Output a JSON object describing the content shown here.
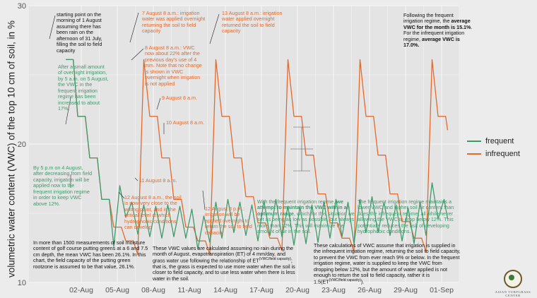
{
  "chart_data": {
    "type": "line",
    "ylabel": "volumetric water content (VWC) of the top 10 cm of soil, in %",
    "xlabel": "",
    "ylim": [
      10,
      30
    ],
    "yticks": [
      10,
      20,
      30
    ],
    "xticks": [
      "02-Aug",
      "05-Aug",
      "08-Aug",
      "11-Aug",
      "14-Aug",
      "17-Aug",
      "20-Aug",
      "23-Aug",
      "26-Aug",
      "29-Aug",
      "01-Sep"
    ],
    "x_start": "2014-07-31 17:00",
    "x_end": "2014-09-01 12:00",
    "grid": true,
    "legend_position": "right",
    "series": [
      {
        "name": "frequent",
        "color": "#3f9a6b",
        "points": [
          [
            "07-31 17:00",
            26.1
          ],
          [
            "08-01 08:00",
            26.1
          ],
          [
            "08-01 17:00",
            22.0
          ],
          [
            "08-02 08:00",
            22.0
          ],
          [
            "08-02 17:00",
            19.0
          ],
          [
            "08-03 08:00",
            19.0
          ],
          [
            "08-03 17:00",
            16.0
          ],
          [
            "08-04 08:00",
            16.0
          ],
          [
            "08-04 17:00",
            12.6
          ],
          [
            "08-05 05:00",
            17.0
          ],
          [
            "08-05 17:00",
            14.7
          ],
          [
            "08-06 05:00",
            15.8
          ],
          [
            "08-06 17:00",
            13.5
          ],
          [
            "08-07 05:00",
            15.6
          ],
          [
            "08-07 17:00",
            13.3
          ],
          [
            "08-08 05:00",
            15.5
          ],
          [
            "08-08 17:00",
            13.2
          ],
          [
            "08-09 05:00",
            15.6
          ],
          [
            "08-09 17:00",
            13.3
          ],
          [
            "08-10 05:00",
            15.5
          ],
          [
            "08-10 17:00",
            13.2
          ],
          [
            "08-11 05:00",
            15.3
          ],
          [
            "08-11 17:00",
            12.4
          ],
          [
            "08-12 05:00",
            14.8
          ],
          [
            "08-12 17:00",
            12.9
          ],
          [
            "08-13 05:00",
            15.8
          ],
          [
            "08-13 17:00",
            13.2
          ],
          [
            "08-14 05:00",
            16.0
          ],
          [
            "08-14 17:00",
            13.6
          ],
          [
            "08-15 05:00",
            15.8
          ],
          [
            "08-15 17:00",
            13.4
          ],
          [
            "08-16 05:00",
            15.6
          ],
          [
            "08-16 17:00",
            13.0
          ],
          [
            "08-17 05:00",
            15.9
          ],
          [
            "08-17 17:00",
            13.4
          ],
          [
            "08-18 05:00",
            16.0
          ],
          [
            "08-18 17:00",
            13.3
          ],
          [
            "08-19 05:00",
            15.5
          ],
          [
            "08-19 17:00",
            12.7
          ],
          [
            "08-20 05:00",
            15.5
          ],
          [
            "08-20 17:00",
            12.8
          ],
          [
            "08-21 05:00",
            15.6
          ],
          [
            "08-21 17:00",
            12.9
          ],
          [
            "08-22 05:00",
            15.8
          ],
          [
            "08-22 17:00",
            13.2
          ],
          [
            "08-23 05:00",
            16.0
          ],
          [
            "08-23 17:00",
            13.3
          ],
          [
            "08-24 05:00",
            15.8
          ],
          [
            "08-24 17:00",
            12.8
          ],
          [
            "08-25 05:00",
            16.0
          ],
          [
            "08-25 17:00",
            13.6
          ],
          [
            "08-26 05:00",
            16.2
          ],
          [
            "08-26 17:00",
            13.6
          ],
          [
            "08-27 05:00",
            15.8
          ],
          [
            "08-27 17:00",
            13.4
          ],
          [
            "08-28 05:00",
            15.6
          ],
          [
            "08-28 17:00",
            13.0
          ],
          [
            "08-29 05:00",
            15.4
          ],
          [
            "08-29 17:00",
            12.8
          ],
          [
            "08-30 05:00",
            15.8
          ],
          [
            "08-30 17:00",
            13.4
          ],
          [
            "08-31 05:00",
            17.2
          ],
          [
            "08-31 17:00",
            14.6
          ],
          [
            "09-01 05:00",
            16.0
          ],
          [
            "09-01 12:00",
            14.6
          ]
        ]
      },
      {
        "name": "infrequent",
        "color": "#e36a2c",
        "points": [
          [
            "07-31 17:00",
            26.1
          ],
          [
            "08-01 08:00",
            26.1
          ],
          [
            "08-01 17:00",
            22.0
          ],
          [
            "08-02 08:00",
            22.0
          ],
          [
            "08-02 17:00",
            19.0
          ],
          [
            "08-03 08:00",
            19.0
          ],
          [
            "08-03 17:00",
            16.0
          ],
          [
            "08-04 08:00",
            16.0
          ],
          [
            "08-04 17:00",
            14.0
          ],
          [
            "08-05 08:00",
            14.0
          ],
          [
            "08-05 17:00",
            13.0
          ],
          [
            "08-06 08:00",
            13.0
          ],
          [
            "08-06 17:00",
            12.0
          ],
          [
            "08-07 05:00",
            26.1
          ],
          [
            "08-07 17:00",
            22.0
          ],
          [
            "08-08 08:00",
            22.0
          ],
          [
            "08-08 17:00",
            19.0
          ],
          [
            "08-09 08:00",
            19.0
          ],
          [
            "08-09 17:00",
            16.0
          ],
          [
            "08-10 08:00",
            16.0
          ],
          [
            "08-10 17:00",
            14.0
          ],
          [
            "08-11 08:00",
            14.0
          ],
          [
            "08-11 17:00",
            13.0
          ],
          [
            "08-12 08:00",
            13.0
          ],
          [
            "08-12 17:00",
            12.0
          ],
          [
            "08-13 05:00",
            26.1
          ],
          [
            "08-13 17:00",
            22.0
          ],
          [
            "08-14 08:00",
            22.0
          ],
          [
            "08-14 17:00",
            19.0
          ],
          [
            "08-15 08:00",
            19.0
          ],
          [
            "08-15 17:00",
            16.2
          ],
          [
            "08-16 08:00",
            16.2
          ],
          [
            "08-16 17:00",
            14.3
          ],
          [
            "08-17 08:00",
            14.3
          ],
          [
            "08-17 17:00",
            13.2
          ],
          [
            "08-18 08:00",
            13.2
          ],
          [
            "08-18 17:00",
            12.3
          ],
          [
            "08-19 05:00",
            26.1
          ],
          [
            "08-19 17:00",
            22.0
          ],
          [
            "08-20 08:00",
            22.0
          ],
          [
            "08-20 17:00",
            19.2
          ],
          [
            "08-21 08:00",
            19.2
          ],
          [
            "08-21 17:00",
            16.4
          ],
          [
            "08-22 08:00",
            16.4
          ],
          [
            "08-22 17:00",
            14.3
          ],
          [
            "08-23 08:00",
            14.3
          ],
          [
            "08-23 17:00",
            13.2
          ],
          [
            "08-24 08:00",
            13.2
          ],
          [
            "08-24 17:00",
            12.2
          ],
          [
            "08-25 05:00",
            26.1
          ],
          [
            "08-25 17:00",
            22.0
          ],
          [
            "08-26 08:00",
            22.0
          ],
          [
            "08-26 17:00",
            19.2
          ],
          [
            "08-27 08:00",
            19.2
          ],
          [
            "08-27 17:00",
            16.4
          ],
          [
            "08-28 08:00",
            16.4
          ],
          [
            "08-28 17:00",
            14.4
          ],
          [
            "08-29 08:00",
            14.4
          ],
          [
            "08-29 17:00",
            13.2
          ],
          [
            "08-30 08:00",
            13.2
          ],
          [
            "08-30 17:00",
            12.2
          ],
          [
            "08-31 05:00",
            26.1
          ],
          [
            "08-31 17:00",
            22.0
          ],
          [
            "09-01 08:00",
            22.0
          ],
          [
            "09-01 12:00",
            21.0
          ]
        ]
      }
    ],
    "annotations": {
      "a1": "starting point on the morning of 1 August assuming there has been rain on the afternoon of 31 July, filling the soil to field capacity",
      "a2": "After a small amount of overnight irrigation, by 5 a.m. on 5 August, the VWC in the frequent irrigation regime has been increased to about 17%.",
      "a3": "By 5 p.m on 4 August, after decreasing from field capacity, irrigation will be applied now to the frequent irrigation regime in order to keep VWC above 12%.",
      "a4": "7 August 8 a.m.: irrigation water was applied overnight returning the soil to field capacity",
      "a5": "8 August 8 a.m.: VWC now about 22% after the previous day's use of 4 mm. Note that no change is shown in VWC overnight when irrigation is not applied",
      "a6": "9 August 8 a.m.",
      "a7": "10 August 8 a.m.",
      "a8": "11 August 8 a.m.",
      "a9": "12 August 8 a.m., the soil is now very close to the wilting point, and is the critical level at which hydrophobic conditions can develop",
      "a10": "13 August 8 a.m.: irrigation water applied overnight returned the soil to field capacity",
      "a11": "12 August 8 p.m.: irrigation will be applied overnight to return the soil to field capacity",
      "a12_pre": "With the frequent irrigation regime, ",
      "a12_bold": "we attempt to maintain the VWC within an optimum range",
      "a12_post": ", which for this situation we set as being as low as possible, but always more than 12%. This will maximize the amount of air in the soil.",
      "a13": "The frequent irrigation regime maintains a lower VWC and higher soil air content than does the infrequent regime, all while never allowing the VWC to drop below 12%. This potentially reduces the risk of developing hydrophobic conditions.",
      "a14_1": "Following the frequent irrigation regime, the ",
      "a14_2": "average VWC for the month is 15.1%",
      "a14_3": ". For the infrequent irrigation regime, ",
      "a14_4": "average VWC is 17.0%.",
      "a15": "In more than 1500 measurements of soil moisture content of golf course putting greens at a 6 and 7.5 cm depth, the mean VWC has been 26.1%. In this chart, the field capacity of the putting green rootzone is assumed to be that value, 26.1%.",
      "a16_1": "These VWC values are calculated assuming no rain during the month of August, evapotranspiration (ET) of 4 mm/day, and grass water use following the relationship of ET",
      "a16_sup": "(VWC/field capacity)",
      "a16_2": "; that is, the grass is expected to use more water when the soil is closer to field capacity, and to use less water when there is less water in the soil.",
      "a17_1": "These calculations of VWC assume that irrigation is supplied in the infrequent irrigation regime, returning the soil to field capacity, to prevent the VWC from ever reach 9% or below. In the frequent irrigation regime, water is supplied to keep the VWC from dropping below 12%, but the amount of water applied is not enough to return the soil to field capacity, rather it is 1.5(ET",
      "a17_sup": "(VWC/field capacity)",
      "a17_2": ")."
    }
  },
  "logo": {
    "text": "ASIAN TURFGRASS CENTER"
  }
}
